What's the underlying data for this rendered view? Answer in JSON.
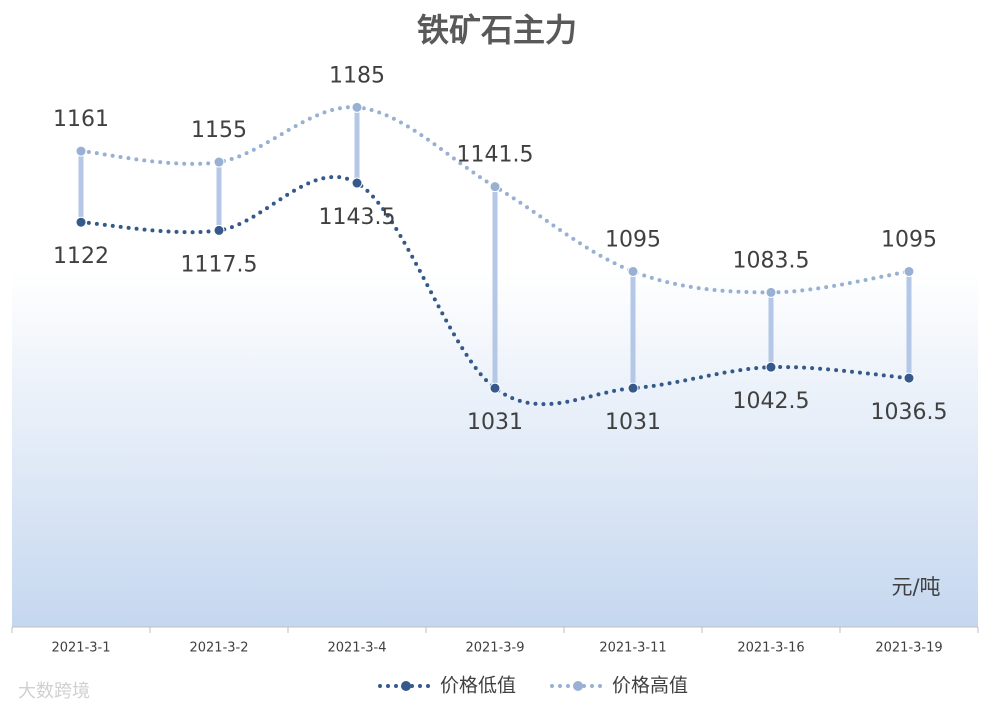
{
  "chart_data": {
    "type": "line",
    "title": "铁矿石主力",
    "categories": [
      "2021-3-1",
      "2021-3-2",
      "2021-3-4",
      "2021-3-9",
      "2021-3-11",
      "2021-3-16",
      "2021-3-19"
    ],
    "series": [
      {
        "name": "价格低值",
        "color": "#34598a",
        "values": [
          1122,
          1117.5,
          1143.5,
          1031,
          1031,
          1042.5,
          1036.5
        ]
      },
      {
        "name": "价格高值",
        "color": "#98b0d3",
        "values": [
          1161,
          1155,
          1185,
          1141.5,
          1095,
          1083.5,
          1095
        ]
      }
    ],
    "ylim": [
      900,
      1200
    ],
    "unit": "元/吨",
    "watermark": "大数跨境",
    "high_low_lines": true,
    "grid": false
  }
}
